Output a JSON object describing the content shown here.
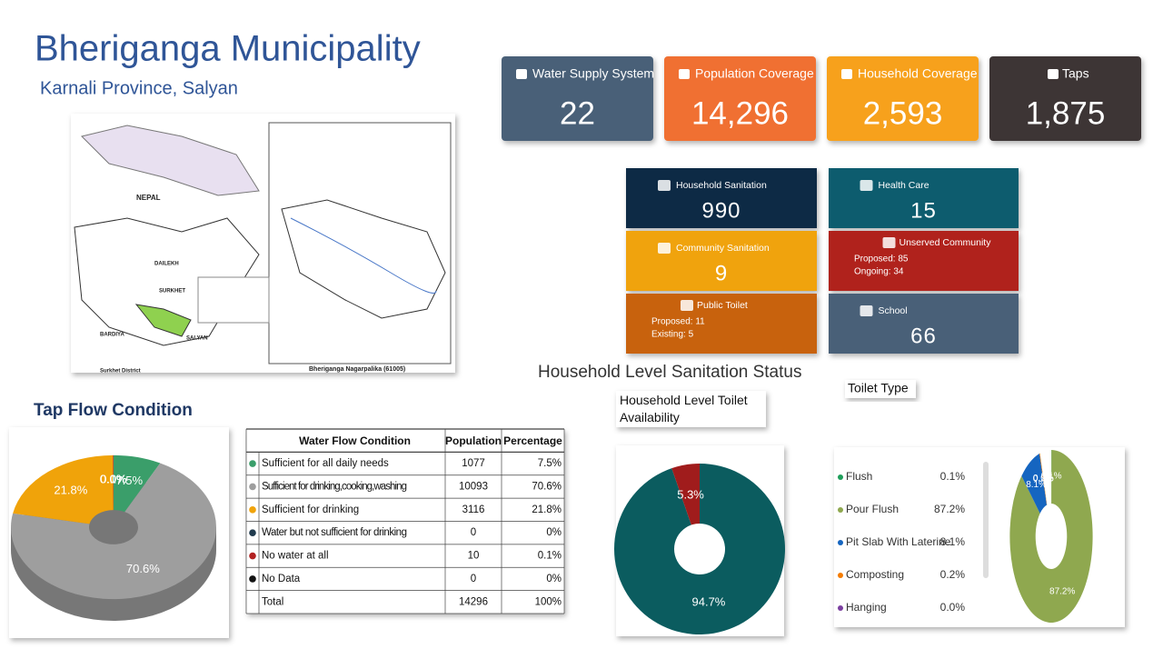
{
  "header": {
    "title": "Bheriganga Municipality",
    "subtitle": "Karnali Province, Salyan"
  },
  "map": {
    "labels": [
      "NEPAL",
      "SURKHET",
      "SALYAN",
      "BARDIYA",
      "DAILEKH",
      "Surkhet District",
      "Bheriganga Nagarpalika (61005)"
    ]
  },
  "cards": [
    {
      "label": "Water Supply System",
      "value": "22",
      "color": "#4a6078"
    },
    {
      "label": "Population Coverage",
      "value": "14,296",
      "color": "#f07030"
    },
    {
      "label": "Household Coverage",
      "value": "2,593",
      "color": "#f7a11a"
    },
    {
      "label": "Taps",
      "value": "1,875",
      "color": "#3d3535"
    }
  ],
  "tiles": [
    {
      "label": "Household Sanitation",
      "value": "990",
      "color": "#0d2b45"
    },
    {
      "label": "Health Care",
      "value": "15",
      "color": "#0b5c6e"
    },
    {
      "label": "Community Sanitation",
      "value": "9",
      "color": "#f0a30a"
    },
    {
      "label": "Unserved Community",
      "lines": [
        "Proposed: 85",
        "Ongoing: 34"
      ],
      "color": "#b0201c"
    },
    {
      "label": "Public Toilet",
      "lines": [
        "Proposed: 11",
        "Existing: 5"
      ],
      "color": "#c8620e"
    },
    {
      "label": "School",
      "value": "66",
      "color": "#4a6078"
    }
  ],
  "section_title": "Household Level Sanitation Status",
  "tap_table": {
    "header": [
      "Water Flow Condition",
      "Population",
      "Percentage"
    ],
    "rows": [
      [
        "Sufficient for all daily needs",
        "1077",
        "7.5%"
      ],
      [
        "Sufficient for drinking,cooking,washing",
        "10093",
        "70.6%"
      ],
      [
        "Sufficient for drinking",
        "3116",
        "21.8%"
      ],
      [
        "Water but not sufficient for drinking",
        "0",
        "0%"
      ],
      [
        "No water at all",
        "10",
        "0.1%"
      ],
      [
        "No Data",
        "0",
        "0%"
      ],
      [
        "Total",
        "14296",
        "100%"
      ]
    ]
  },
  "chart_data": [
    {
      "type": "pie",
      "title": "Tap Flow Condition",
      "categories": [
        "Sufficient for all daily needs",
        "Sufficient for drinking,cooking,washing",
        "Sufficient for drinking",
        "Water but not sufficient for drinking",
        "No water at all",
        "No Data"
      ],
      "values": [
        7.5,
        70.6,
        21.8,
        0,
        0.1,
        0
      ],
      "value_labels": [
        "7.5%",
        "70.6%",
        "21.8%",
        "0.0%",
        "0.1%",
        "0.0%"
      ],
      "colors": [
        "#3a9e6a",
        "#9e9e9e",
        "#f0a30a",
        "#1f3a4d",
        "#b22222",
        "#111111"
      ]
    },
    {
      "type": "pie",
      "title": "Household Level Toilet Availability",
      "values": [
        94.7,
        5.3
      ],
      "value_labels": [
        "94.7%",
        "5.3%"
      ],
      "colors": [
        "#0b5c5f",
        "#a01c1c"
      ]
    },
    {
      "type": "pie",
      "title": "Toilet Type",
      "categories": [
        "Flush",
        "Pour Flush",
        "Pit Slab With Laterine",
        "Composting",
        "Hanging"
      ],
      "values": [
        0.1,
        87.2,
        8.1,
        0.2,
        0.0
      ],
      "value_labels": [
        "0.1%",
        "87.2%",
        "8.1%",
        "0.2%",
        "0.0%"
      ],
      "colors": [
        "#1e9e5a",
        "#8fa84f",
        "#1565c0",
        "#f57c00",
        "#7b3fa0"
      ]
    }
  ]
}
